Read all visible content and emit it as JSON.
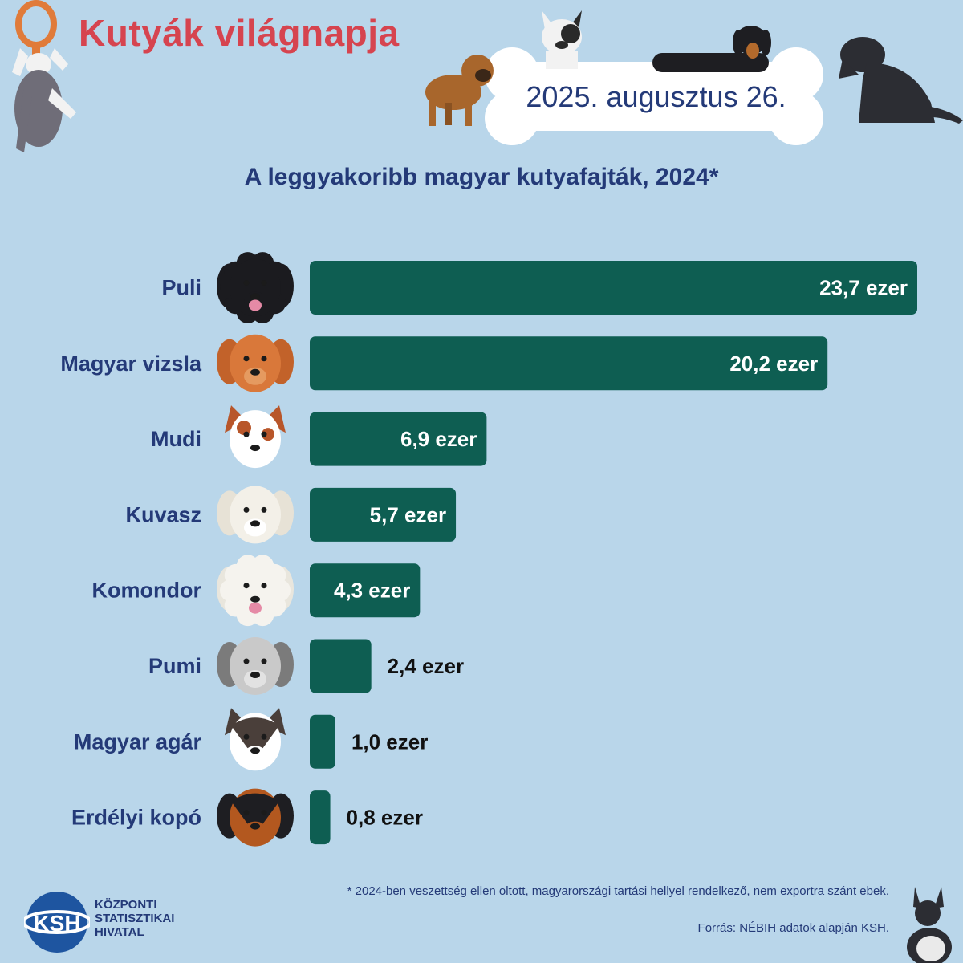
{
  "header": {
    "title": "Kutyák világnapja",
    "date": "2025. augusztus 26."
  },
  "chart_data": {
    "type": "bar",
    "orientation": "horizontal",
    "title": "A leggyakoribb magyar kutyafajták, 2024*",
    "categories": [
      "Puli",
      "Magyar vizsla",
      "Mudi",
      "Kuvasz",
      "Komondor",
      "Pumi",
      "Magyar agár",
      "Erdélyi  kopó"
    ],
    "values": [
      23.7,
      20.2,
      6.9,
      5.7,
      4.3,
      2.4,
      1.0,
      0.8
    ],
    "value_labels": [
      "23,7 ezer",
      "20,2 ezer",
      "6,9 ezer",
      "5,7 ezer",
      "4,3 ezer",
      "2,4 ezer",
      "1,0 ezer",
      "0,8 ezer"
    ],
    "unit": "ezer",
    "xlim": [
      0,
      23.7
    ],
    "grid": false,
    "bar_color": "#0e5e52"
  },
  "footer": {
    "footnote": "* 2024-ben veszettség ellen oltott, magyarországi tartási hellyel rendelkező, nem exportra szánt ebek.",
    "source": "Forrás: NÉBIH adatok alapján KSH.",
    "logo_text": "KSH",
    "org_lines": [
      "KÖZPONTI",
      "STATISZTIKAI",
      "HIVATAL"
    ]
  },
  "colors": {
    "background": "#b9d6ea",
    "title": "#d6444f",
    "text": "#243a78",
    "bar": "#0e5e52"
  },
  "icons": [
    "puli-face-icon",
    "vizsla-face-icon",
    "mudi-face-icon",
    "kuvasz-face-icon",
    "komondor-face-icon",
    "pumi-face-icon",
    "agar-face-icon",
    "kopo-face-icon"
  ]
}
